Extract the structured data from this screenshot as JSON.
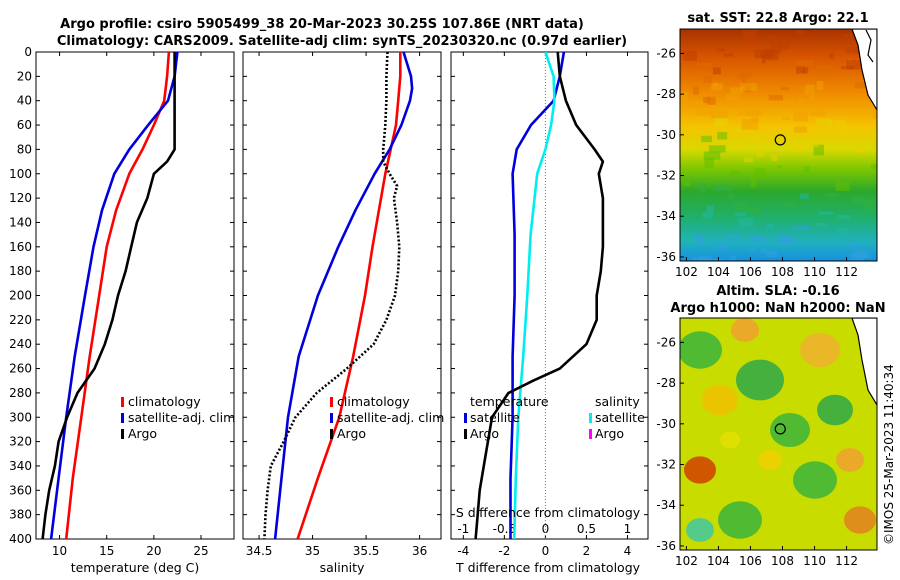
{
  "titles": {
    "line1": "Argo profile: csiro 5905499_38 20-Mar-2023 30.25S 107.86E (NRT data)",
    "line2": "Climatology: CARS2009. Satellite-adj clim: synTS_20230320.nc (0.97d earlier)",
    "sst_map": "sat. SST: 22.8 Argo: 22.1",
    "sla_map_1": "Altim. SLA: -0.16",
    "sla_map_2": "Argo h1000: NaN h2000: NaN",
    "watermark": "©IMOS 25-Mar-2023 11:40:34"
  },
  "colors": {
    "climatology": "#ff0000",
    "satellite": "#0000dd",
    "argo": "#000000",
    "sal_satellite": "#00eeee",
    "sal_argo": "#ff00ff"
  },
  "chart_data": [
    {
      "type": "line",
      "id": "temperature",
      "xlabel": "temperature (deg C)",
      "ylabel": "",
      "xlim": [
        7.5,
        28.5
      ],
      "ylim": [
        400,
        0
      ],
      "xticks": [
        10,
        15,
        20,
        25
      ],
      "yticks": [
        0,
        20,
        40,
        60,
        80,
        100,
        120,
        140,
        160,
        180,
        200,
        220,
        240,
        260,
        280,
        300,
        320,
        340,
        360,
        380,
        400
      ],
      "legend": [
        "climatology",
        "satellite-adj. clim",
        "Argo"
      ],
      "series": [
        {
          "name": "climatology",
          "color": "#ff0000",
          "dash": "",
          "depth": [
            0,
            20,
            40,
            60,
            80,
            100,
            130,
            160,
            200,
            250,
            300,
            350,
            400
          ],
          "values": [
            21.6,
            21.4,
            21.1,
            20.0,
            18.8,
            17.4,
            16.0,
            15.0,
            14.2,
            13.2,
            12.3,
            11.4,
            10.7
          ]
        },
        {
          "name": "satellite-adj. clim",
          "color": "#0000dd",
          "dash": "",
          "depth": [
            0,
            20,
            40,
            60,
            80,
            100,
            130,
            160,
            200,
            250,
            300,
            350,
            400
          ],
          "values": [
            22.5,
            22.2,
            21.5,
            19.4,
            17.4,
            15.8,
            14.5,
            13.6,
            12.7,
            11.6,
            10.7,
            9.9,
            9.1
          ]
        },
        {
          "name": "Argo",
          "color": "#000000",
          "dash": "",
          "depth": [
            0,
            20,
            40,
            60,
            80,
            90,
            100,
            120,
            140,
            160,
            180,
            200,
            220,
            240,
            260,
            280,
            300,
            320,
            340,
            360,
            380,
            400
          ],
          "values": [
            22.2,
            22.2,
            22.2,
            22.2,
            22.2,
            21.4,
            20.0,
            19.3,
            18.2,
            17.6,
            17.0,
            16.2,
            15.6,
            14.8,
            13.7,
            11.9,
            10.8,
            9.9,
            9.5,
            8.9,
            8.5,
            8.2
          ]
        }
      ]
    },
    {
      "type": "line",
      "id": "salinity",
      "xlabel": "salinity",
      "ylabel": "",
      "xlim": [
        34.35,
        36.2
      ],
      "ylim": [
        400,
        0
      ],
      "xticks": [
        34.5,
        35,
        35.5,
        36
      ],
      "xticklabels": [
        "34.5",
        "35",
        "35.5",
        "36"
      ],
      "legend": [
        "climatology",
        "satellite-adj. clim",
        "Argo"
      ],
      "series": [
        {
          "name": "climatology",
          "color": "#ff0000",
          "dash": "",
          "depth": [
            0,
            20,
            40,
            60,
            80,
            100,
            130,
            160,
            200,
            250,
            300,
            350,
            400
          ],
          "values": [
            35.82,
            35.82,
            35.8,
            35.78,
            35.73,
            35.68,
            35.62,
            35.56,
            35.49,
            35.38,
            35.25,
            35.05,
            34.86
          ]
        },
        {
          "name": "satellite-adj. clim",
          "color": "#0000dd",
          "dash": "",
          "depth": [
            0,
            20,
            30,
            40,
            60,
            80,
            100,
            130,
            160,
            200,
            250,
            300,
            350,
            400
          ],
          "values": [
            35.85,
            35.92,
            35.93,
            35.91,
            35.83,
            35.72,
            35.58,
            35.4,
            35.24,
            35.05,
            34.87,
            34.77,
            34.71,
            34.65
          ]
        },
        {
          "name": "Argo",
          "color": "#000000",
          "dash": "2,2",
          "depth": [
            0,
            20,
            40,
            60,
            80,
            90,
            100,
            110,
            120,
            140,
            160,
            180,
            200,
            220,
            240,
            260,
            280,
            300,
            320,
            340,
            360,
            380,
            400
          ],
          "values": [
            35.7,
            35.69,
            35.69,
            35.68,
            35.66,
            35.66,
            35.72,
            35.79,
            35.76,
            35.79,
            35.81,
            35.8,
            35.77,
            35.69,
            35.57,
            35.32,
            35.04,
            34.84,
            34.73,
            34.61,
            34.58,
            34.56,
            34.55
          ]
        }
      ]
    },
    {
      "type": "line",
      "id": "difference",
      "xlabel": "T difference from climatology",
      "xlabel_top": "S difference from climatology",
      "ylabel": "",
      "xlim": [
        -4.6,
        5.0
      ],
      "ylim": [
        400,
        0
      ],
      "xticks": [
        -4,
        -2,
        0,
        2,
        4
      ],
      "s_xticks": [
        -1,
        -0.5,
        0,
        0.5,
        1
      ],
      "s_xticklabels": [
        "-1",
        "-0.5",
        "0",
        "0.5",
        "1"
      ],
      "legend_titles": [
        "temperature",
        "salinity"
      ],
      "legend_temperature": [
        "satellite",
        "Argo"
      ],
      "legend_salinity": [
        "satellite",
        "Argo"
      ],
      "series": [
        {
          "name": "temperature satellite",
          "color": "#0000dd",
          "dash": "",
          "depth": [
            0,
            20,
            40,
            60,
            80,
            100,
            150,
            200,
            250,
            300,
            350,
            400
          ],
          "values": [
            0.9,
            0.7,
            0.4,
            -0.7,
            -1.4,
            -1.6,
            -1.5,
            -1.5,
            -1.6,
            -1.6,
            -1.7,
            -1.7
          ]
        },
        {
          "name": "salinity satellite",
          "color": "#00eeee",
          "dash": "",
          "depth": [
            0,
            20,
            40,
            60,
            80,
            100,
            150,
            200,
            250,
            300,
            350,
            400
          ],
          "values": [
            0.0,
            0.1,
            0.11,
            0.07,
            0.0,
            -0.1,
            -0.18,
            -0.22,
            -0.27,
            -0.33,
            -0.36,
            -0.38
          ]
        },
        {
          "name": "temperature Argo",
          "color": "#000000",
          "dash": "",
          "depth": [
            0,
            20,
            40,
            60,
            80,
            90,
            100,
            120,
            140,
            160,
            180,
            200,
            220,
            240,
            260,
            270,
            280,
            300,
            320,
            340,
            360,
            380,
            400
          ],
          "values": [
            0.6,
            0.7,
            1.0,
            1.5,
            2.4,
            2.8,
            2.6,
            2.8,
            2.8,
            2.8,
            2.7,
            2.5,
            2.5,
            2.0,
            0.7,
            -0.6,
            -1.8,
            -2.6,
            -2.8,
            -3.0,
            -3.2,
            -3.3,
            -3.4
          ]
        }
      ]
    }
  ],
  "maps": {
    "sst": {
      "xticks": [
        102,
        104,
        106,
        108,
        110,
        112
      ],
      "yticks": [
        -26,
        -28,
        -30,
        -32,
        -34,
        -36
      ],
      "xticklabels": [
        "102",
        "104",
        "106",
        "108",
        "110",
        "112"
      ],
      "yticklabels": [
        "-26",
        "-28",
        "-30",
        "-32",
        "-34",
        "-36"
      ],
      "argo_lon": 107.86,
      "argo_lat": -30.25
    },
    "sla": {
      "xticks": [
        102,
        104,
        106,
        108,
        110,
        112
      ],
      "yticks": [
        -26,
        -28,
        -30,
        -32,
        -34,
        -36
      ],
      "xticklabels": [
        "102",
        "104",
        "106",
        "108",
        "110",
        "112"
      ],
      "yticklabels": [
        "-26",
        "-28",
        "-30",
        "-32",
        "-34",
        "-36"
      ],
      "argo_lon": 107.86,
      "argo_lat": -30.25
    }
  }
}
